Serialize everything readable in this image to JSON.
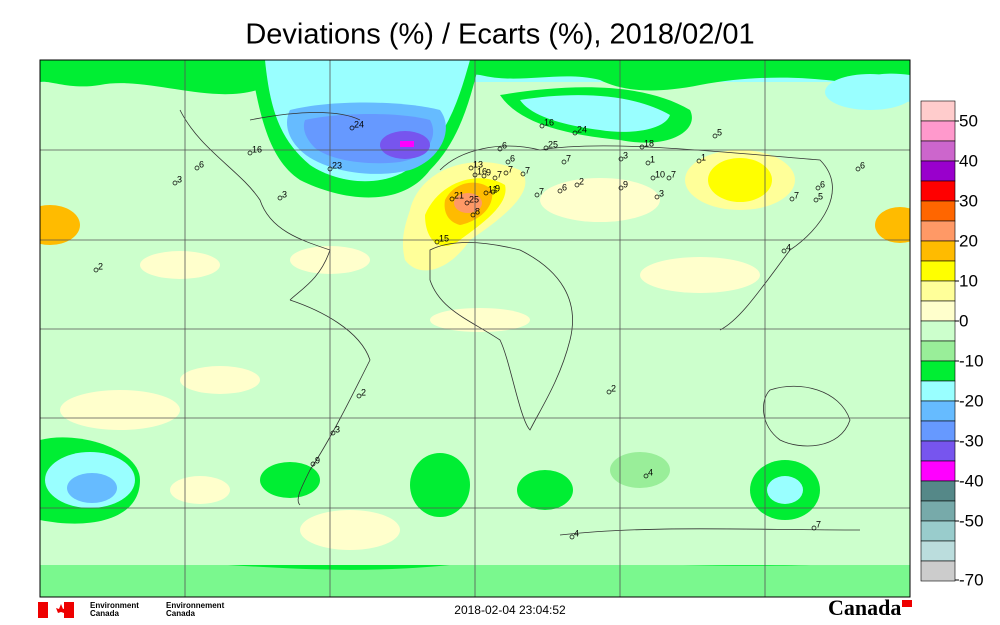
{
  "title": "Deviations (%) / Ecarts (%), 2018/02/01",
  "legend": {
    "colors": [
      "#ffcccc",
      "#ff99cc",
      "#cc66cc",
      "#9900cc",
      "#ff0000",
      "#ff6600",
      "#ff9966",
      "#ffbb00",
      "#ffff00",
      "#ffff99",
      "#ffffcc",
      "#ccffcc",
      "#99ee99",
      "#00ee33",
      "#99ffff",
      "#66bbff",
      "#6699ff",
      "#7755ee",
      "#ff00ff",
      "#558888",
      "#77aaaa",
      "#99cccc",
      "#bbdddd",
      "#cccccc"
    ],
    "labels": [
      "50",
      "40",
      "30",
      "20",
      "10",
      "0",
      "-10",
      "-20",
      "-30",
      "-40",
      "-50",
      "-70"
    ]
  },
  "stations": [
    "24",
    "16",
    "23",
    "6",
    "3",
    "3",
    "2",
    "16",
    "24",
    "25",
    "6",
    "18",
    "5",
    "3",
    "7",
    "1",
    "1",
    "10",
    "7",
    "6",
    "13",
    "16",
    "9",
    "7",
    "7",
    "6",
    "7",
    "2",
    "6",
    "9",
    "3",
    "7",
    "7",
    "6",
    "5",
    "21",
    "25",
    "11",
    "9",
    "8",
    "15",
    "4",
    "2",
    "2",
    "3",
    "9",
    "4",
    "4",
    "7"
  ],
  "footer": {
    "timestamp": "2018-02-04 23:04:52",
    "logo_en": [
      "Environment",
      "Canada"
    ],
    "logo_fr": [
      "Environnement",
      "Canada"
    ],
    "wordmark": "Canada"
  }
}
